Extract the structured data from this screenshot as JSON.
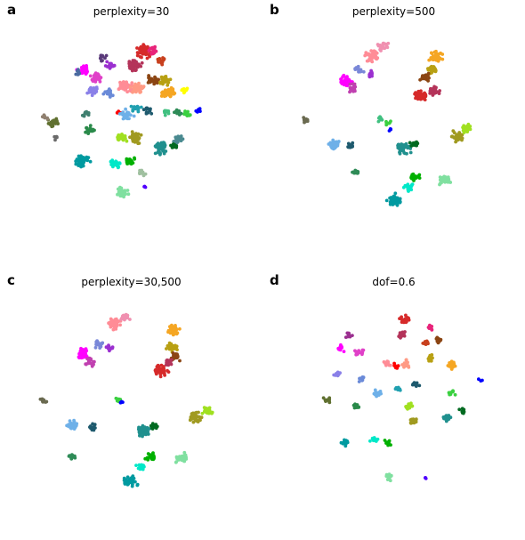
{
  "chart_data": [
    {
      "type": "scatter",
      "panel_label": "a",
      "title": "perplexity=30",
      "axes": "off",
      "clusters": [
        {
          "color": "#d62a2a",
          "x": 0.13,
          "y": 0.8,
          "n": 60
        },
        {
          "color": "#b4345a",
          "x": 0.04,
          "y": 0.66,
          "n": 45
        },
        {
          "color": "#e8247a",
          "x": 0.21,
          "y": 0.81,
          "n": 20
        },
        {
          "color": "#c8401e",
          "x": 0.28,
          "y": 0.71,
          "n": 15
        },
        {
          "color": "#8b4513",
          "x": 0.22,
          "y": 0.53,
          "n": 30
        },
        {
          "color": "#b8a013",
          "x": 0.32,
          "y": 0.52,
          "n": 25
        },
        {
          "color": "#f5a623",
          "x": 0.35,
          "y": 0.4,
          "n": 45
        },
        {
          "color": "#ffff00",
          "x": 0.5,
          "y": 0.42,
          "n": 10
        },
        {
          "color": "#ff8c96",
          "x": -0.05,
          "y": 0.46,
          "n": 55
        },
        {
          "color": "#ff9a84",
          "x": 0.07,
          "y": 0.45,
          "n": 45
        },
        {
          "color": "#ff00ff",
          "x": -0.44,
          "y": 0.62,
          "n": 35
        },
        {
          "color": "#e040c8",
          "x": -0.32,
          "y": 0.55,
          "n": 30
        },
        {
          "color": "#9b30d0",
          "x": -0.19,
          "y": 0.66,
          "n": 20
        },
        {
          "color": "#8a80e8",
          "x": -0.36,
          "y": 0.43,
          "n": 25
        },
        {
          "color": "#6a8ad8",
          "x": -0.2,
          "y": 0.4,
          "n": 20
        },
        {
          "color": "#5a3a7a",
          "x": -0.27,
          "y": 0.74,
          "n": 12
        },
        {
          "color": "#4a6aa0",
          "x": -0.5,
          "y": 0.6,
          "n": 8
        },
        {
          "color": "#ff0000",
          "x": -0.1,
          "y": 0.22,
          "n": 5
        },
        {
          "color": "#6eb0e8",
          "x": -0.04,
          "y": 0.2,
          "n": 35
        },
        {
          "color": "#20a0b0",
          "x": 0.05,
          "y": 0.25,
          "n": 18
        },
        {
          "color": "#1e5a6e",
          "x": 0.16,
          "y": 0.24,
          "n": 14
        },
        {
          "color": "#40c080",
          "x": 0.33,
          "y": 0.22,
          "n": 12
        },
        {
          "color": "#3ad040",
          "x": 0.52,
          "y": 0.2,
          "n": 12
        },
        {
          "color": "#0000ff",
          "x": 0.63,
          "y": 0.24,
          "n": 6
        },
        {
          "color": "#2e8b57",
          "x": 0.44,
          "y": 0.21,
          "n": 10
        },
        {
          "color": "#607030",
          "x": -0.72,
          "y": 0.12,
          "n": 28
        },
        {
          "color": "#2a8a4a",
          "x": -0.38,
          "y": 0.05,
          "n": 20
        },
        {
          "color": "#408070",
          "x": -0.42,
          "y": 0.2,
          "n": 10
        },
        {
          "color": "#a0e020",
          "x": -0.08,
          "y": -0.02,
          "n": 30
        },
        {
          "color": "#a09a20",
          "x": 0.05,
          "y": -0.02,
          "n": 45
        },
        {
          "color": "#20908e",
          "x": 0.28,
          "y": -0.12,
          "n": 50
        },
        {
          "color": "#4a8a90",
          "x": 0.45,
          "y": -0.04,
          "n": 20
        },
        {
          "color": "#006a20",
          "x": 0.4,
          "y": -0.1,
          "n": 10
        },
        {
          "color": "#009aa0",
          "x": -0.45,
          "y": -0.25,
          "n": 55
        },
        {
          "color": "#00e8c8",
          "x": -0.15,
          "y": -0.27,
          "n": 25
        },
        {
          "color": "#00b000",
          "x": -0.01,
          "y": -0.25,
          "n": 20
        },
        {
          "color": "#a0c0a0",
          "x": 0.1,
          "y": -0.35,
          "n": 10
        },
        {
          "color": "#5000ff",
          "x": 0.14,
          "y": -0.5,
          "n": 4
        },
        {
          "color": "#80e0a0",
          "x": -0.08,
          "y": -0.55,
          "n": 35
        },
        {
          "color": "#908070",
          "x": -0.8,
          "y": 0.18,
          "n": 6
        },
        {
          "color": "#6a6a6a",
          "x": -0.7,
          "y": -0.02,
          "n": 5
        }
      ]
    },
    {
      "type": "scatter",
      "panel_label": "b",
      "title": "perplexity=500",
      "axes": "off",
      "clusters": [
        {
          "color": "#ff8c96",
          "x": -0.2,
          "y": 0.75,
          "n": 50
        },
        {
          "color": "#f090b0",
          "x": -0.1,
          "y": 0.85,
          "n": 25
        },
        {
          "color": "#ff00ff",
          "x": -0.45,
          "y": 0.52,
          "n": 40
        },
        {
          "color": "#c040b0",
          "x": -0.38,
          "y": 0.45,
          "n": 20
        },
        {
          "color": "#7a88d8",
          "x": -0.32,
          "y": 0.62,
          "n": 15
        },
        {
          "color": "#9b30d0",
          "x": -0.22,
          "y": 0.58,
          "n": 10
        },
        {
          "color": "#f5a623",
          "x": 0.4,
          "y": 0.75,
          "n": 40
        },
        {
          "color": "#b8a013",
          "x": 0.36,
          "y": 0.62,
          "n": 25
        },
        {
          "color": "#8b4513",
          "x": 0.3,
          "y": 0.55,
          "n": 25
        },
        {
          "color": "#d62a2a",
          "x": 0.25,
          "y": 0.38,
          "n": 45
        },
        {
          "color": "#b4345a",
          "x": 0.38,
          "y": 0.42,
          "n": 30
        },
        {
          "color": "#40c080",
          "x": -0.12,
          "y": 0.15,
          "n": 8
        },
        {
          "color": "#3ad040",
          "x": -0.05,
          "y": 0.12,
          "n": 8
        },
        {
          "color": "#0000ff",
          "x": -0.03,
          "y": 0.06,
          "n": 4
        },
        {
          "color": "#6a6a50",
          "x": -0.82,
          "y": 0.15,
          "n": 12
        },
        {
          "color": "#6eb0e8",
          "x": -0.55,
          "y": -0.08,
          "n": 35
        },
        {
          "color": "#1e5a6e",
          "x": -0.4,
          "y": -0.1,
          "n": 12
        },
        {
          "color": "#a09a20",
          "x": 0.6,
          "y": -0.02,
          "n": 40
        },
        {
          "color": "#a0e020",
          "x": 0.7,
          "y": 0.06,
          "n": 25
        },
        {
          "color": "#20908e",
          "x": 0.1,
          "y": -0.12,
          "n": 45
        },
        {
          "color": "#006a20",
          "x": 0.2,
          "y": -0.08,
          "n": 15
        },
        {
          "color": "#2e8b57",
          "x": -0.35,
          "y": -0.35,
          "n": 12
        },
        {
          "color": "#00b000",
          "x": 0.2,
          "y": -0.4,
          "n": 20
        },
        {
          "color": "#00e8c8",
          "x": 0.15,
          "y": -0.5,
          "n": 20
        },
        {
          "color": "#009aa0",
          "x": 0.02,
          "y": -0.62,
          "n": 45
        },
        {
          "color": "#80e0a0",
          "x": 0.48,
          "y": -0.43,
          "n": 35
        }
      ]
    },
    {
      "type": "scatter",
      "panel_label": "c",
      "title": "perplexity=30,500",
      "axes": "off",
      "clusters": [
        {
          "color": "#ff8c96",
          "x": -0.15,
          "y": 0.78,
          "n": 45
        },
        {
          "color": "#f090b0",
          "x": -0.05,
          "y": 0.85,
          "n": 20
        },
        {
          "color": "#ff00ff",
          "x": -0.45,
          "y": 0.5,
          "n": 40
        },
        {
          "color": "#c040b0",
          "x": -0.38,
          "y": 0.42,
          "n": 20
        },
        {
          "color": "#7a88d8",
          "x": -0.3,
          "y": 0.58,
          "n": 15
        },
        {
          "color": "#9b30d0",
          "x": -0.2,
          "y": 0.55,
          "n": 10
        },
        {
          "color": "#f5a623",
          "x": 0.4,
          "y": 0.72,
          "n": 40
        },
        {
          "color": "#b8a013",
          "x": 0.38,
          "y": 0.55,
          "n": 25
        },
        {
          "color": "#8b4513",
          "x": 0.42,
          "y": 0.47,
          "n": 20
        },
        {
          "color": "#d62a2a",
          "x": 0.28,
          "y": 0.33,
          "n": 50
        },
        {
          "color": "#b4345a",
          "x": 0.35,
          "y": 0.42,
          "n": 20
        },
        {
          "color": "#3ad040",
          "x": -0.12,
          "y": 0.05,
          "n": 10
        },
        {
          "color": "#0000ff",
          "x": -0.08,
          "y": 0.02,
          "n": 3
        },
        {
          "color": "#6a6a50",
          "x": -0.82,
          "y": 0.05,
          "n": 12
        },
        {
          "color": "#6eb0e8",
          "x": -0.55,
          "y": -0.18,
          "n": 30
        },
        {
          "color": "#1e5a6e",
          "x": -0.35,
          "y": -0.2,
          "n": 12
        },
        {
          "color": "#a09a20",
          "x": 0.6,
          "y": -0.12,
          "n": 40
        },
        {
          "color": "#a0e020",
          "x": 0.72,
          "y": -0.05,
          "n": 25
        },
        {
          "color": "#20908e",
          "x": 0.12,
          "y": -0.25,
          "n": 45
        },
        {
          "color": "#006a20",
          "x": 0.22,
          "y": -0.2,
          "n": 15
        },
        {
          "color": "#2e8b57",
          "x": -0.55,
          "y": -0.48,
          "n": 12
        },
        {
          "color": "#00b000",
          "x": 0.18,
          "y": -0.48,
          "n": 20
        },
        {
          "color": "#00e8c8",
          "x": 0.1,
          "y": -0.58,
          "n": 20
        },
        {
          "color": "#009aa0",
          "x": 0.0,
          "y": -0.72,
          "n": 45
        },
        {
          "color": "#80e0a0",
          "x": 0.48,
          "y": -0.5,
          "n": 35
        }
      ]
    },
    {
      "type": "scatter",
      "panel_label": "d",
      "title": "dof=0.6",
      "axes": "off",
      "clusters": [
        {
          "color": "#d62a2a",
          "x": 0.1,
          "y": 0.82,
          "n": 20
        },
        {
          "color": "#b4345a",
          "x": 0.08,
          "y": 0.68,
          "n": 18
        },
        {
          "color": "#e8247a",
          "x": 0.35,
          "y": 0.75,
          "n": 8
        },
        {
          "color": "#8b4513",
          "x": 0.42,
          "y": 0.62,
          "n": 12
        },
        {
          "color": "#c8401e",
          "x": 0.3,
          "y": 0.6,
          "n": 10
        },
        {
          "color": "#b8a013",
          "x": 0.35,
          "y": 0.45,
          "n": 12
        },
        {
          "color": "#f5a623",
          "x": 0.55,
          "y": 0.38,
          "n": 15
        },
        {
          "color": "#ff0000",
          "x": 0.02,
          "y": 0.38,
          "n": 8
        },
        {
          "color": "#ff8c96",
          "x": -0.05,
          "y": 0.4,
          "n": 12
        },
        {
          "color": "#ff9a84",
          "x": 0.12,
          "y": 0.4,
          "n": 12
        },
        {
          "color": "#9b3090",
          "x": -0.42,
          "y": 0.68,
          "n": 10
        },
        {
          "color": "#ff00ff",
          "x": -0.5,
          "y": 0.55,
          "n": 12
        },
        {
          "color": "#e040c8",
          "x": -0.32,
          "y": 0.5,
          "n": 12
        },
        {
          "color": "#8a80e8",
          "x": -0.52,
          "y": 0.3,
          "n": 10
        },
        {
          "color": "#6a8ad8",
          "x": -0.3,
          "y": 0.25,
          "n": 10
        },
        {
          "color": "#20a0b0",
          "x": 0.05,
          "y": 0.15,
          "n": 10
        },
        {
          "color": "#6eb0e8",
          "x": -0.15,
          "y": 0.12,
          "n": 15
        },
        {
          "color": "#1e5a6e",
          "x": 0.2,
          "y": 0.2,
          "n": 10
        },
        {
          "color": "#3ad040",
          "x": 0.55,
          "y": 0.12,
          "n": 10
        },
        {
          "color": "#0000ff",
          "x": 0.82,
          "y": 0.25,
          "n": 3
        },
        {
          "color": "#607030",
          "x": -0.62,
          "y": 0.05,
          "n": 10
        },
        {
          "color": "#2a8a4a",
          "x": -0.35,
          "y": 0.0,
          "n": 10
        },
        {
          "color": "#a0e020",
          "x": 0.15,
          "y": 0.0,
          "n": 15
        },
        {
          "color": "#a09a20",
          "x": 0.18,
          "y": -0.15,
          "n": 18
        },
        {
          "color": "#20908e",
          "x": 0.5,
          "y": -0.12,
          "n": 20
        },
        {
          "color": "#006a20",
          "x": 0.65,
          "y": -0.05,
          "n": 10
        },
        {
          "color": "#009aa0",
          "x": -0.45,
          "y": -0.35,
          "n": 15
        },
        {
          "color": "#00e8c8",
          "x": -0.18,
          "y": -0.32,
          "n": 10
        },
        {
          "color": "#00b000",
          "x": -0.05,
          "y": -0.35,
          "n": 12
        },
        {
          "color": "#80e0a0",
          "x": -0.05,
          "y": -0.68,
          "n": 15
        },
        {
          "color": "#5000ff",
          "x": 0.3,
          "y": -0.68,
          "n": 3
        }
      ]
    }
  ]
}
